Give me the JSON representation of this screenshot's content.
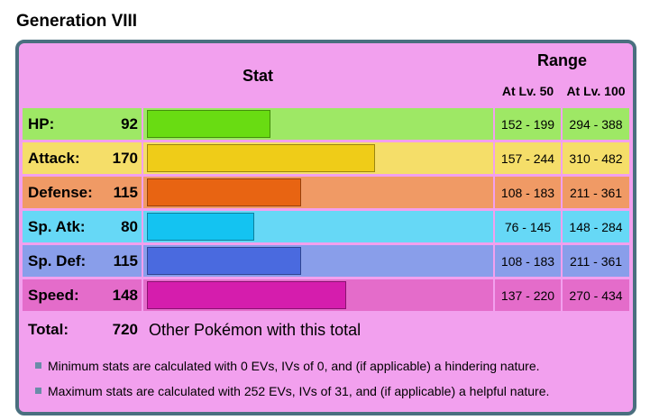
{
  "heading": "Generation VIII",
  "table": {
    "stat_header": "Stat",
    "range_header": "Range",
    "lv50_header": "At Lv. 50",
    "lv100_header": "At Lv. 100",
    "max_stat": 255,
    "stats": [
      {
        "label": "HP:",
        "value": "92",
        "range50": "152 - 199",
        "range100": "294 - 388",
        "bg": "#9ee865",
        "bar": "#69dc12"
      },
      {
        "label": "Attack:",
        "value": "170",
        "range50": "157 - 244",
        "range100": "310 - 482",
        "bg": "#f5de69",
        "bar": "#efcc18"
      },
      {
        "label": "Defense:",
        "value": "115",
        "range50": "108 - 183",
        "range100": "211 - 361",
        "bg": "#f09a65",
        "bar": "#e86412"
      },
      {
        "label": "Sp. Atk:",
        "value": "80",
        "range50": "76 - 145",
        "range100": "148 - 284",
        "bg": "#66d8f6",
        "bar": "#14c3f1"
      },
      {
        "label": "Sp. Def:",
        "value": "115",
        "range50": "108 - 183",
        "range100": "211 - 361",
        "bg": "#899eea",
        "bar": "#4a6adf"
      },
      {
        "label": "Speed:",
        "value": "148",
        "range50": "137 - 220",
        "range100": "270 - 434",
        "bg": "#e46cca",
        "bar": "#d51dad"
      }
    ],
    "total_label": "Total:",
    "total_value": "720",
    "total_text": "Other Pokémon with this total",
    "notes": [
      "Minimum stats are calculated with 0 EVs, IVs of 0, and (if applicable) a hindering nature.",
      "Maximum stats are calculated with 252 EVs, IVs of 31, and (if applicable) a helpful nature."
    ]
  }
}
